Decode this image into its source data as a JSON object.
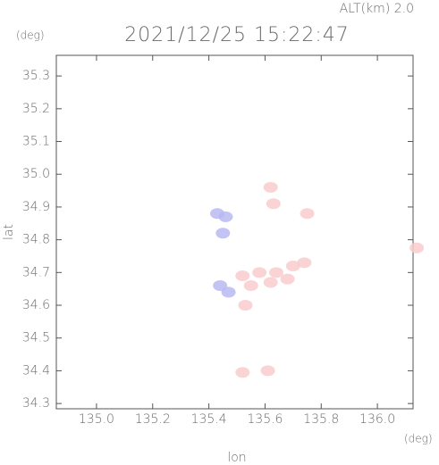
{
  "chart_data": {
    "type": "scatter",
    "title": "2021/12/25 15:22:47",
    "subtitle": "ALT(km) 2.0",
    "x_label": "lon",
    "y_label": "lat",
    "x_unit": "(deg)",
    "y_unit": "(deg)",
    "xlim": [
      134.857,
      136.127
    ],
    "ylim": [
      34.284,
      35.363
    ],
    "xticks": [
      {
        "value": 135,
        "label": "135.0"
      },
      135.2,
      135.4,
      135.6,
      135.8,
      {
        "value": 136,
        "label": "136.0"
      }
    ],
    "yticks": [
      34.3,
      34.4,
      34.5,
      34.6,
      34.7,
      34.8,
      34.9,
      {
        "value": 35,
        "label": "35.0"
      },
      35.1,
      35.2,
      35.3
    ],
    "series": [
      {
        "color": "#b9b9f2",
        "x": [
          135.43,
          135.46,
          135.45,
          135.44,
          135.47
        ],
        "y": [
          34.88,
          34.87,
          34.82,
          34.66,
          34.64
        ]
      },
      {
        "color": "#f9cccc",
        "x": [
          135.52,
          135.58,
          135.64,
          135.7,
          135.74,
          135.62,
          135.68,
          135.55,
          135.53,
          135.63,
          135.75,
          136.14,
          135.52,
          135.61,
          135.62
        ],
        "y": [
          34.69,
          34.7,
          34.7,
          34.72,
          34.73,
          34.67,
          34.68,
          34.66,
          34.6,
          34.91,
          34.88,
          34.775,
          34.395,
          34.4,
          34.96
        ]
      }
    ]
  }
}
